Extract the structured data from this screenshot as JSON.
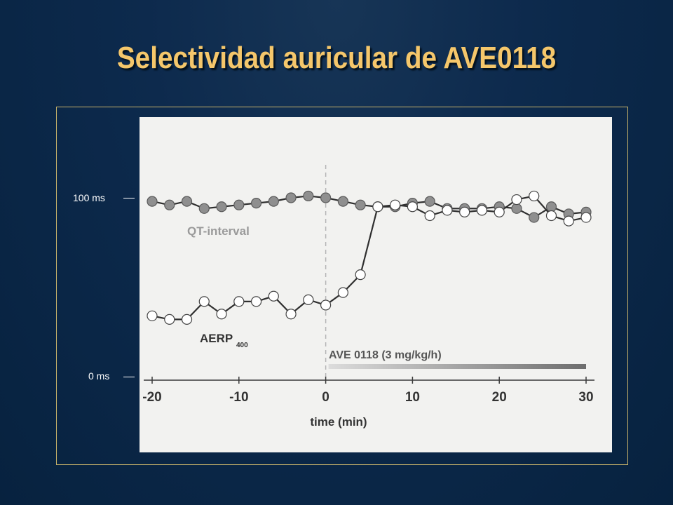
{
  "slide": {
    "title": "Selectividad auricular de AVE0118"
  },
  "colors": {
    "title": "#f5c76b",
    "background": "#0d2a4d",
    "plot_background": "#f2f2f0",
    "frame": "#c8b36a"
  },
  "y_labels": {
    "top": "100 ms",
    "bottom": "0 ms"
  },
  "chart_data": {
    "type": "line",
    "xlabel": "time (min)",
    "x_ticks": [
      -20,
      -10,
      0,
      10,
      20,
      30
    ],
    "xlim": [
      -20,
      30
    ],
    "ylim": [
      0,
      100
    ],
    "grid": false,
    "series": [
      {
        "name": "QT-interval",
        "marker": "filled",
        "color": "#8f8f8f",
        "x": [
          -20,
          -18,
          -16,
          -14,
          -12,
          -10,
          -8,
          -6,
          -4,
          -2,
          0,
          2,
          4,
          6,
          8,
          10,
          12,
          14,
          16,
          18,
          20,
          22,
          24,
          26,
          28,
          30
        ],
        "y": [
          98,
          96,
          98,
          94,
          95,
          96,
          97,
          98,
          100,
          101,
          100,
          98,
          96,
          95,
          95,
          97,
          98,
          94,
          94,
          94,
          95,
          94,
          89,
          95,
          91,
          92
        ]
      },
      {
        "name": "AERP400",
        "marker": "open",
        "color": "#ffffff",
        "x": [
          -20,
          -18,
          -16,
          -14,
          -12,
          -10,
          -8,
          -6,
          -4,
          -2,
          0,
          2,
          4,
          6,
          8,
          10,
          12,
          14,
          16,
          18,
          20,
          22,
          24,
          26,
          28,
          30
        ],
        "y": [
          34,
          32,
          32,
          42,
          35,
          42,
          42,
          45,
          35,
          43,
          40,
          47,
          57,
          95,
          96,
          95,
          90,
          93,
          92,
          93,
          92,
          99,
          101,
          90,
          87,
          89
        ]
      }
    ],
    "series_labels": {
      "qt": "QT-interval",
      "aerp_main": "AERP",
      "aerp_sub": "400"
    },
    "annotation": {
      "text": "AVE 0118 (3 mg/kg/h)",
      "start_x": 0,
      "end_x": 30
    },
    "marker_line": {
      "x": 0
    }
  }
}
